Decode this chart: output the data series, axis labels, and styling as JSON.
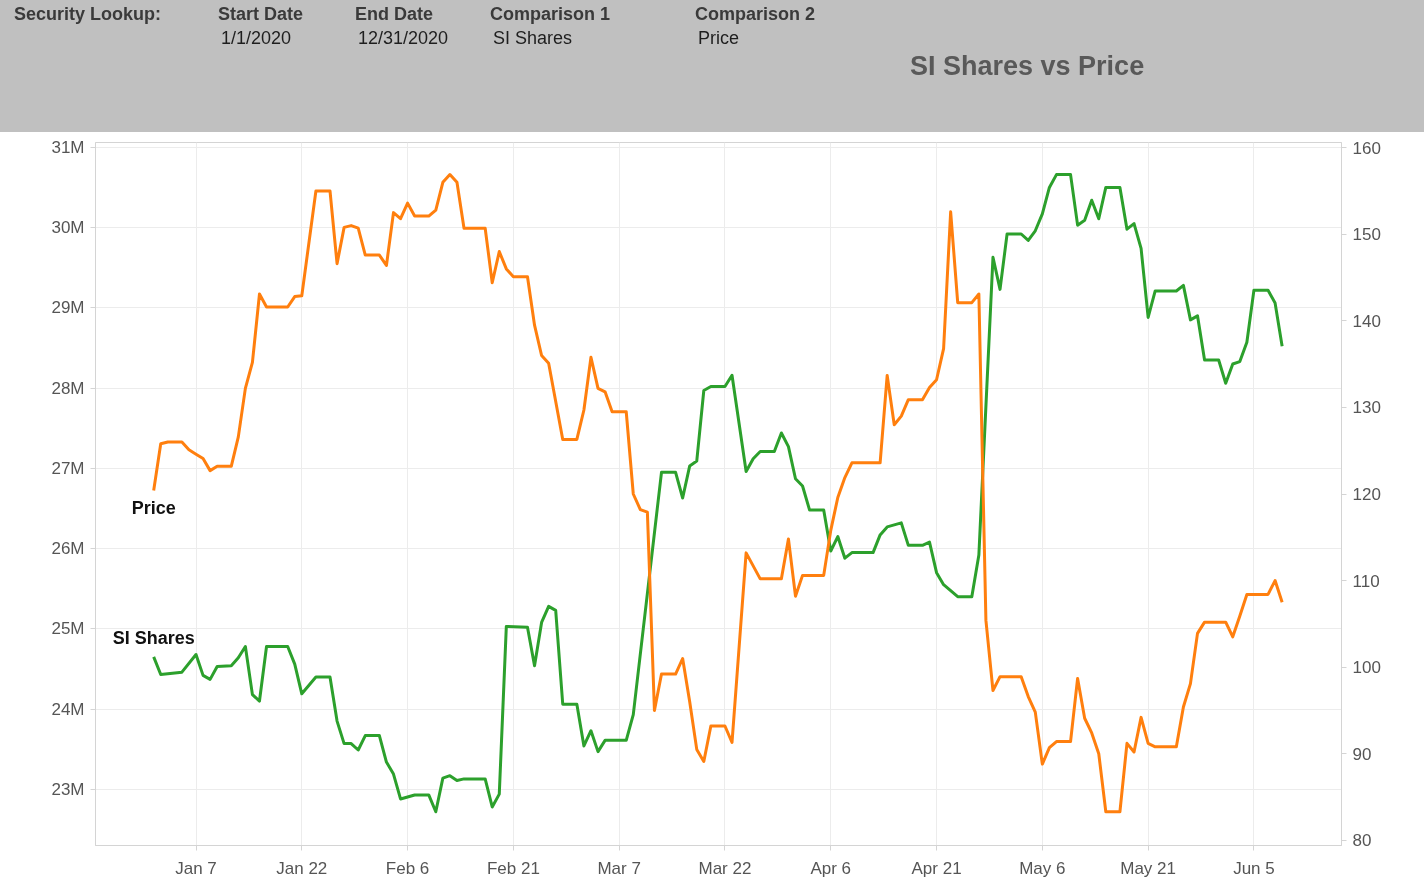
{
  "chart_data": {
    "type": "line",
    "title": "SI Shares vs Price",
    "annotations": [
      "Security Lookup:",
      "Start Date\n1/1/2020",
      "End Date\n12/31/2020",
      "Comparison 1\nSI Shares",
      "Comparison 2\nPrice"
    ],
    "series": [
      {
        "name": "SI Shares",
        "color": "#2ca02c",
        "x": [
          "2020-01-01",
          "2020-01-02",
          "2020-01-05",
          "2020-01-07",
          "2020-01-08",
          "2020-01-09",
          "2020-01-10",
          "2020-01-12",
          "2020-01-13",
          "2020-01-14",
          "2020-01-15",
          "2020-01-16",
          "2020-01-17",
          "2020-01-20",
          "2020-01-21",
          "2020-01-22",
          "2020-01-24",
          "2020-01-26",
          "2020-01-27",
          "2020-01-28",
          "2020-01-29",
          "2020-01-30",
          "2020-01-31",
          "2020-02-02",
          "2020-02-03",
          "2020-02-04",
          "2020-02-05",
          "2020-02-07",
          "2020-02-09",
          "2020-02-10",
          "2020-02-11",
          "2020-02-12",
          "2020-02-13",
          "2020-02-14",
          "2020-02-17",
          "2020-02-18",
          "2020-02-19",
          "2020-02-20",
          "2020-02-23",
          "2020-02-24",
          "2020-02-25",
          "2020-02-26",
          "2020-02-27",
          "2020-02-28",
          "2020-03-01",
          "2020-03-02",
          "2020-03-03",
          "2020-03-04",
          "2020-03-05",
          "2020-03-08",
          "2020-03-09",
          "2020-03-13",
          "2020-03-15",
          "2020-03-16",
          "2020-03-17",
          "2020-03-18",
          "2020-03-19",
          "2020-03-20",
          "2020-03-22",
          "2020-03-23",
          "2020-03-25",
          "2020-03-26",
          "2020-03-27",
          "2020-03-29",
          "2020-03-30",
          "2020-03-31",
          "2020-04-01",
          "2020-04-02",
          "2020-04-03",
          "2020-04-05",
          "2020-04-06",
          "2020-04-07",
          "2020-04-08",
          "2020-04-09",
          "2020-04-12",
          "2020-04-13",
          "2020-04-14",
          "2020-04-16",
          "2020-04-17",
          "2020-04-19",
          "2020-04-20",
          "2020-04-21",
          "2020-04-22",
          "2020-04-24",
          "2020-04-26",
          "2020-04-27",
          "2020-04-29",
          "2020-04-30",
          "2020-05-01",
          "2020-05-03",
          "2020-05-04",
          "2020-05-05",
          "2020-05-06",
          "2020-05-07",
          "2020-05-08",
          "2020-05-10",
          "2020-05-11",
          "2020-05-12",
          "2020-05-13",
          "2020-05-14",
          "2020-05-15",
          "2020-05-17",
          "2020-05-18",
          "2020-05-19",
          "2020-05-20",
          "2020-05-21",
          "2020-05-22",
          "2020-05-25",
          "2020-05-26",
          "2020-05-27",
          "2020-05-28",
          "2020-05-29",
          "2020-05-31",
          "2020-06-01",
          "2020-06-02",
          "2020-06-03",
          "2020-06-04",
          "2020-06-05",
          "2020-06-07",
          "2020-06-08",
          "2020-06-09"
        ],
        "values": [
          24.65,
          24.43,
          24.46,
          24.68,
          24.42,
          24.37,
          24.53,
          24.54,
          24.64,
          24.78,
          24.18,
          24.1,
          24.78,
          24.78,
          24.56,
          24.19,
          24.4,
          24.4,
          23.85,
          23.57,
          23.57,
          23.49,
          23.67,
          23.67,
          23.34,
          23.19,
          22.88,
          22.93,
          22.93,
          22.72,
          23.14,
          23.17,
          23.11,
          23.13,
          23.13,
          22.78,
          22.94,
          25.03,
          25.02,
          24.54,
          25.08,
          25.28,
          25.23,
          24.06,
          24.06,
          23.54,
          23.73,
          23.47,
          23.61,
          23.61,
          23.93,
          26.95,
          26.95,
          26.63,
          27.03,
          27.09,
          27.97,
          28.02,
          28.02,
          28.16,
          26.96,
          27.12,
          27.21,
          27.21,
          27.44,
          27.27,
          26.87,
          26.78,
          26.48,
          26.48,
          25.97,
          26.15,
          25.88,
          25.95,
          25.95,
          26.17,
          26.27,
          26.32,
          26.04,
          26.04,
          26.08,
          25.7,
          25.55,
          25.4,
          25.4,
          25.92,
          29.63,
          29.23,
          29.92,
          29.92,
          29.84,
          29.96,
          30.17,
          30.5,
          30.66,
          30.66,
          30.03,
          30.09,
          30.34,
          30.11,
          30.5,
          30.5,
          29.98,
          30.05,
          29.74,
          28.88,
          29.21,
          29.21,
          29.28,
          28.85,
          28.9,
          28.35,
          28.35,
          28.06,
          28.3,
          28.33,
          28.57,
          29.22,
          29.22,
          29.06,
          28.52
        ]
      },
      {
        "name": "Price",
        "color": "#ff7f0e",
        "axis": "y2",
        "x": [
          "2020-01-01",
          "2020-01-02",
          "2020-01-03",
          "2020-01-05",
          "2020-01-06",
          "2020-01-07",
          "2020-01-08",
          "2020-01-09",
          "2020-01-10",
          "2020-01-12",
          "2020-01-13",
          "2020-01-14",
          "2020-01-15",
          "2020-01-16",
          "2020-01-17",
          "2020-01-20",
          "2020-01-21",
          "2020-01-22",
          "2020-01-24",
          "2020-01-26",
          "2020-01-27",
          "2020-01-28",
          "2020-01-29",
          "2020-01-30",
          "2020-01-31",
          "2020-02-02",
          "2020-02-03",
          "2020-02-04",
          "2020-02-05",
          "2020-02-06",
          "2020-02-07",
          "2020-02-09",
          "2020-02-10",
          "2020-02-11",
          "2020-02-12",
          "2020-02-13",
          "2020-02-14",
          "2020-02-17",
          "2020-02-18",
          "2020-02-19",
          "2020-02-20",
          "2020-02-21",
          "2020-02-23",
          "2020-02-24",
          "2020-02-25",
          "2020-02-26",
          "2020-02-28",
          "2020-03-01",
          "2020-03-02",
          "2020-03-03",
          "2020-03-04",
          "2020-03-05",
          "2020-03-06",
          "2020-03-08",
          "2020-03-09",
          "2020-03-10",
          "2020-03-11",
          "2020-03-12",
          "2020-03-13",
          "2020-03-15",
          "2020-03-16",
          "2020-03-17",
          "2020-03-18",
          "2020-03-19",
          "2020-03-20",
          "2020-03-22",
          "2020-03-23",
          "2020-03-25",
          "2020-03-27",
          "2020-03-30",
          "2020-03-31",
          "2020-04-01",
          "2020-04-02",
          "2020-04-05",
          "2020-04-06",
          "2020-04-07",
          "2020-04-08",
          "2020-04-09",
          "2020-04-13",
          "2020-04-14",
          "2020-04-15",
          "2020-04-16",
          "2020-04-17",
          "2020-04-19",
          "2020-04-20",
          "2020-04-21",
          "2020-04-22",
          "2020-04-23",
          "2020-04-24",
          "2020-04-26",
          "2020-04-27",
          "2020-04-28",
          "2020-04-29",
          "2020-04-30",
          "2020-05-03",
          "2020-05-04",
          "2020-05-05",
          "2020-05-06",
          "2020-05-07",
          "2020-05-08",
          "2020-05-10",
          "2020-05-11",
          "2020-05-12",
          "2020-05-13",
          "2020-05-14",
          "2020-05-15",
          "2020-05-17",
          "2020-05-18",
          "2020-05-19",
          "2020-05-20",
          "2020-05-21",
          "2020-05-22",
          "2020-05-25",
          "2020-05-26",
          "2020-05-27",
          "2020-05-28",
          "2020-05-29",
          "2020-06-01",
          "2020-06-02",
          "2020-06-03",
          "2020-06-04",
          "2020-06-07",
          "2020-06-08",
          "2020-06-09"
        ],
        "values": [
          120.4,
          125.8,
          126.0,
          126.0,
          125.1,
          124.6,
          124.1,
          122.7,
          123.2,
          123.2,
          126.6,
          132.2,
          135.2,
          143.1,
          141.6,
          141.6,
          142.8,
          142.9,
          155.0,
          155.0,
          146.6,
          150.8,
          151.0,
          150.7,
          147.6,
          147.6,
          146.4,
          152.5,
          151.8,
          153.6,
          152.1,
          152.1,
          152.8,
          156.0,
          156.9,
          156.0,
          150.7,
          150.7,
          144.4,
          148.0,
          146.0,
          145.1,
          145.1,
          139.5,
          136.0,
          135.1,
          126.3,
          126.3,
          129.7,
          135.8,
          132.2,
          131.8,
          129.5,
          129.5,
          120.0,
          118.2,
          117.9,
          95.0,
          99.2,
          99.2,
          101.0,
          96.0,
          90.5,
          89.1,
          93.2,
          93.2,
          91.3,
          113.2,
          110.2,
          110.2,
          114.8,
          108.2,
          110.6,
          110.6,
          115.8,
          119.6,
          121.9,
          123.6,
          123.6,
          133.7,
          128.0,
          129.0,
          130.9,
          130.9,
          132.3,
          133.2,
          136.8,
          152.6,
          142.1,
          142.1,
          143.1,
          105.4,
          97.3,
          98.9,
          98.9,
          96.6,
          94.8,
          88.8,
          90.7,
          91.4,
          91.4,
          98.7,
          94.1,
          92.4,
          90.0,
          83.3,
          83.3,
          91.2,
          90.2,
          94.2,
          91.2,
          90.8,
          90.8,
          95.4,
          98.1,
          103.9,
          105.2,
          105.2,
          103.5,
          105.9,
          108.4,
          108.4,
          110.0,
          107.5
        ]
      }
    ],
    "xlim": [
      "2019-12-23T18:00",
      "2020-06-17T10:00"
    ],
    "xticks": [
      {
        "value": "2020-01-07",
        "label": "Jan 7"
      },
      {
        "value": "2020-01-22",
        "label": "Jan 22"
      },
      {
        "value": "2020-02-06",
        "label": "Feb 6"
      },
      {
        "value": "2020-02-21",
        "label": "Feb 21"
      },
      {
        "value": "2020-03-07",
        "label": "Mar 7"
      },
      {
        "value": "2020-03-22",
        "label": "Mar 22"
      },
      {
        "value": "2020-04-06",
        "label": "Apr 6"
      },
      {
        "value": "2020-04-21",
        "label": "Apr 21"
      },
      {
        "value": "2020-05-06",
        "label": "May 6"
      },
      {
        "value": "2020-05-21",
        "label": "May 21"
      },
      {
        "value": "2020-06-05",
        "label": "Jun 5"
      }
    ],
    "ylim": [
      22.3,
      31.06
    ],
    "yticks": [
      {
        "value": 23,
        "label": "23M"
      },
      {
        "value": 24,
        "label": "24M"
      },
      {
        "value": 25,
        "label": "25M"
      },
      {
        "value": 26,
        "label": "26M"
      },
      {
        "value": 27,
        "label": "27M"
      },
      {
        "value": 28,
        "label": "28M"
      },
      {
        "value": 29,
        "label": "29M"
      },
      {
        "value": 30,
        "label": "30M"
      },
      {
        "value": 31,
        "label": "31M"
      }
    ],
    "y2lim": [
      79.4,
      160.6
    ],
    "y2ticks": [
      80,
      90,
      100,
      110,
      120,
      130,
      140,
      150,
      160
    ],
    "grid": true,
    "line_style": "solid"
  }
}
